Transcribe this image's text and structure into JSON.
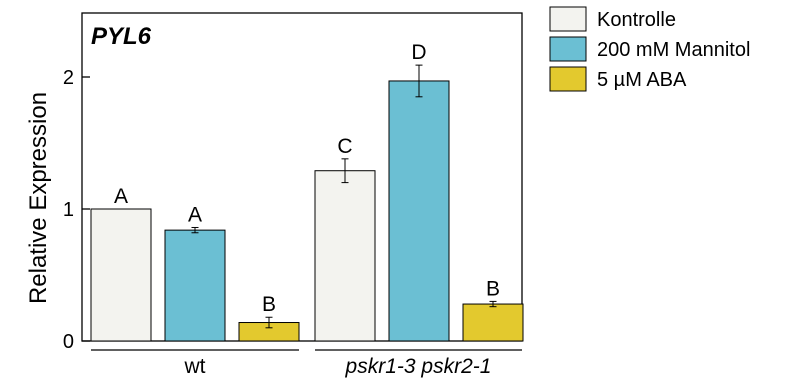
{
  "chart_data": {
    "type": "bar",
    "title": "PYL6",
    "ylabel": "Relative Expression",
    "xlabel": "",
    "ylim": [
      0,
      2.5
    ],
    "yticks": [
      0,
      1,
      2
    ],
    "grid": false,
    "legend_position": "right",
    "groups": [
      {
        "label": "wt",
        "italic": false
      },
      {
        "label": "pskr1-3 pskr2-1",
        "italic": true
      }
    ],
    "series": [
      {
        "name": "Kontrolle",
        "color": "#f3f3ef",
        "values": [
          1.0,
          1.29
        ],
        "errors": [
          0.0,
          0.09
        ],
        "letters": [
          "A",
          "C"
        ]
      },
      {
        "name": "200 mM Mannitol",
        "color": "#6bbfd3",
        "values": [
          0.84,
          1.97
        ],
        "errors": [
          0.02,
          0.12
        ],
        "letters": [
          "A",
          "D"
        ]
      },
      {
        "name": "5 µM ABA",
        "color": "#e3c92e",
        "values": [
          0.14,
          0.28
        ],
        "errors": [
          0.04,
          0.02
        ],
        "letters": [
          "B",
          "B"
        ]
      }
    ]
  }
}
